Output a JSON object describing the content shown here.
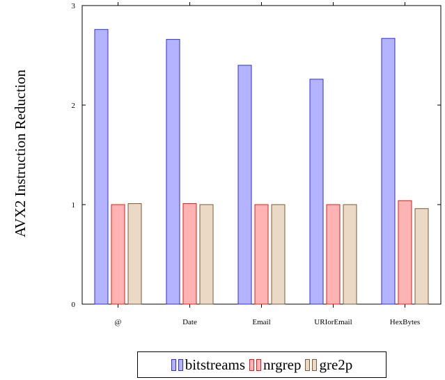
{
  "chart_data": {
    "type": "bar",
    "ylabel": "AVX2 Instruction Reduction",
    "xlabel": "",
    "ylim": [
      0,
      3
    ],
    "yticks": [
      0,
      1,
      2,
      3
    ],
    "categories": [
      "@",
      "Date",
      "Email",
      "URIorEmail",
      "HexBytes"
    ],
    "series": [
      {
        "name": "bitstreams",
        "fill": "#b3b3ff",
        "stroke": "#2f2fd6",
        "values": [
          2.76,
          2.66,
          2.4,
          2.26,
          2.67
        ]
      },
      {
        "name": "nrgrep",
        "fill": "#ffb3b3",
        "stroke": "#e01b1b",
        "values": [
          1.0,
          1.01,
          1.0,
          1.0,
          1.04
        ]
      },
      {
        "name": "gre2p",
        "fill": "#ead9c4",
        "stroke": "#7a5a3a",
        "values": [
          1.01,
          1.0,
          1.0,
          1.0,
          0.96
        ]
      }
    ],
    "legend_position": "bottom",
    "grid": false
  }
}
